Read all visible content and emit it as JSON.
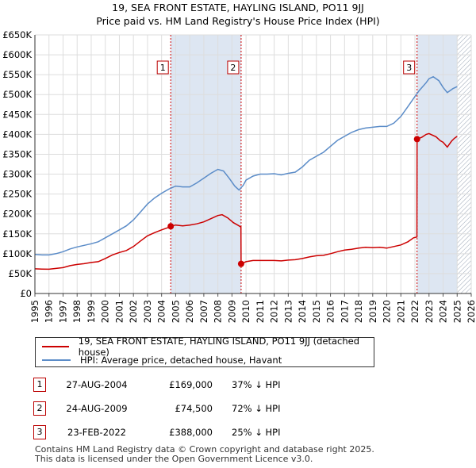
{
  "chart_data": {
    "type": "line",
    "title": "19, SEA FRONT ESTATE, HAYLING ISLAND, PO11 9JJ",
    "subtitle": "Price paid vs. HM Land Registry's House Price Index (HPI)",
    "x_ticks": [
      "1995",
      "1996",
      "1997",
      "1998",
      "1999",
      "2000",
      "2001",
      "2002",
      "2003",
      "2004",
      "2005",
      "2006",
      "2007",
      "2008",
      "2009",
      "2010",
      "2011",
      "2012",
      "2013",
      "2014",
      "2015",
      "2016",
      "2017",
      "2018",
      "2019",
      "2020",
      "2021",
      "2022",
      "2023",
      "2024",
      "2025",
      "2026"
    ],
    "y_ticks": [
      "£0",
      "£50K",
      "£100K",
      "£150K",
      "£200K",
      "£250K",
      "£300K",
      "£350K",
      "£400K",
      "£450K",
      "£500K",
      "£550K",
      "£600K",
      "£650K"
    ],
    "xlim": [
      1995,
      2026
    ],
    "ylim": [
      0,
      650000
    ],
    "future_start": 2025.0,
    "colors": {
      "property": "#cc0000",
      "hpi": "#5b8cc8",
      "marker_line": "#cc0000",
      "highlight": "#dde6f2",
      "grid": "#dddddd"
    },
    "series": [
      {
        "name": "19, SEA FRONT ESTATE, HAYLING ISLAND, PO11 9JJ (detached house)",
        "color": "#cc0000",
        "points": [
          [
            1995.0,
            62000
          ],
          [
            1995.5,
            61500
          ],
          [
            1996.0,
            61000
          ],
          [
            1996.5,
            63000
          ],
          [
            1997.0,
            65000
          ],
          [
            1997.5,
            70000
          ],
          [
            1998.0,
            73000
          ],
          [
            1998.5,
            75000
          ],
          [
            1999.0,
            78000
          ],
          [
            1999.5,
            80000
          ],
          [
            2000.0,
            88000
          ],
          [
            2000.5,
            97000
          ],
          [
            2001.0,
            103000
          ],
          [
            2001.5,
            108000
          ],
          [
            2002.0,
            118000
          ],
          [
            2002.5,
            132000
          ],
          [
            2003.0,
            145000
          ],
          [
            2003.5,
            153000
          ],
          [
            2004.0,
            160000
          ],
          [
            2004.5,
            166000
          ],
          [
            2004.65,
            169000
          ],
          [
            2005.0,
            172000
          ],
          [
            2005.5,
            170000
          ],
          [
            2006.0,
            172000
          ],
          [
            2006.5,
            175000
          ],
          [
            2007.0,
            180000
          ],
          [
            2007.5,
            188000
          ],
          [
            2008.0,
            196000
          ],
          [
            2008.3,
            198000
          ],
          [
            2008.7,
            190000
          ],
          [
            2009.1,
            178000
          ],
          [
            2009.4,
            172000
          ],
          [
            2009.64,
            167000
          ],
          [
            2009.65,
            74500
          ],
          [
            2010.0,
            80000
          ],
          [
            2010.5,
            83000
          ],
          [
            2011.0,
            83000
          ],
          [
            2011.5,
            83000
          ],
          [
            2012.0,
            83000
          ],
          [
            2012.5,
            82000
          ],
          [
            2013.0,
            84000
          ],
          [
            2013.5,
            85000
          ],
          [
            2014.0,
            88000
          ],
          [
            2014.5,
            92000
          ],
          [
            2015.0,
            95000
          ],
          [
            2015.5,
            96000
          ],
          [
            2016.0,
            100000
          ],
          [
            2016.5,
            105000
          ],
          [
            2017.0,
            109000
          ],
          [
            2017.5,
            111000
          ],
          [
            2018.0,
            114000
          ],
          [
            2018.5,
            116000
          ],
          [
            2019.0,
            115000
          ],
          [
            2019.5,
            116000
          ],
          [
            2020.0,
            114000
          ],
          [
            2020.5,
            118000
          ],
          [
            2021.0,
            122000
          ],
          [
            2021.5,
            130000
          ],
          [
            2021.9,
            140000
          ],
          [
            2022.14,
            142000
          ],
          [
            2022.15,
            388000
          ],
          [
            2022.5,
            393000
          ],
          [
            2022.8,
            400000
          ],
          [
            2023.0,
            402000
          ],
          [
            2023.5,
            394000
          ],
          [
            2023.8,
            384000
          ],
          [
            2024.0,
            380000
          ],
          [
            2024.3,
            368000
          ],
          [
            2024.6,
            383000
          ],
          [
            2024.8,
            390000
          ],
          [
            2025.0,
            395000
          ]
        ]
      },
      {
        "name": "HPI: Average price, detached house, Havant",
        "color": "#5b8cc8",
        "points": [
          [
            1995.0,
            98000
          ],
          [
            1995.5,
            97000
          ],
          [
            1996.0,
            97000
          ],
          [
            1996.5,
            100000
          ],
          [
            1997.0,
            105000
          ],
          [
            1997.5,
            112000
          ],
          [
            1998.0,
            117000
          ],
          [
            1998.5,
            121000
          ],
          [
            1999.0,
            125000
          ],
          [
            1999.5,
            130000
          ],
          [
            2000.0,
            140000
          ],
          [
            2000.5,
            150000
          ],
          [
            2001.0,
            160000
          ],
          [
            2001.5,
            170000
          ],
          [
            2002.0,
            185000
          ],
          [
            2002.5,
            205000
          ],
          [
            2003.0,
            225000
          ],
          [
            2003.5,
            240000
          ],
          [
            2004.0,
            252000
          ],
          [
            2004.5,
            262000
          ],
          [
            2005.0,
            270000
          ],
          [
            2005.5,
            268000
          ],
          [
            2006.0,
            268000
          ],
          [
            2006.5,
            278000
          ],
          [
            2007.0,
            290000
          ],
          [
            2007.5,
            302000
          ],
          [
            2008.0,
            312000
          ],
          [
            2008.4,
            308000
          ],
          [
            2008.8,
            290000
          ],
          [
            2009.2,
            270000
          ],
          [
            2009.5,
            260000
          ],
          [
            2009.8,
            272000
          ],
          [
            2010.0,
            285000
          ],
          [
            2010.5,
            295000
          ],
          [
            2011.0,
            300000
          ],
          [
            2011.5,
            300000
          ],
          [
            2012.0,
            301000
          ],
          [
            2012.5,
            298000
          ],
          [
            2013.0,
            302000
          ],
          [
            2013.5,
            305000
          ],
          [
            2014.0,
            318000
          ],
          [
            2014.5,
            335000
          ],
          [
            2015.0,
            345000
          ],
          [
            2015.5,
            355000
          ],
          [
            2016.0,
            370000
          ],
          [
            2016.5,
            385000
          ],
          [
            2017.0,
            395000
          ],
          [
            2017.5,
            405000
          ],
          [
            2018.0,
            412000
          ],
          [
            2018.5,
            416000
          ],
          [
            2019.0,
            418000
          ],
          [
            2019.5,
            420000
          ],
          [
            2020.0,
            420000
          ],
          [
            2020.5,
            428000
          ],
          [
            2021.0,
            445000
          ],
          [
            2021.5,
            470000
          ],
          [
            2022.0,
            495000
          ],
          [
            2022.3,
            510000
          ],
          [
            2022.8,
            530000
          ],
          [
            2023.0,
            540000
          ],
          [
            2023.3,
            545000
          ],
          [
            2023.7,
            535000
          ],
          [
            2024.0,
            518000
          ],
          [
            2024.3,
            505000
          ],
          [
            2024.7,
            515000
          ],
          [
            2025.0,
            520000
          ]
        ]
      }
    ],
    "sale_markers": [
      {
        "id": "1",
        "x": 2004.65,
        "y": 169000
      },
      {
        "id": "2",
        "x": 2009.65,
        "y": 74500
      },
      {
        "id": "3",
        "x": 2022.15,
        "y": 388000
      }
    ],
    "highlight_spans": [
      [
        2004.65,
        2009.65
      ],
      [
        2022.15,
        2025.0
      ]
    ]
  },
  "legend": {
    "property_label": "19, SEA FRONT ESTATE, HAYLING ISLAND, PO11 9JJ (detached house)",
    "hpi_label": "HPI: Average price, detached house, Havant"
  },
  "sales": [
    {
      "num": "1",
      "date": "27-AUG-2004",
      "price": "£169,000",
      "hpi": "37% ↓ HPI"
    },
    {
      "num": "2",
      "date": "24-AUG-2009",
      "price": "£74,500",
      "hpi": "72% ↓ HPI"
    },
    {
      "num": "3",
      "date": "23-FEB-2022",
      "price": "£388,000",
      "hpi": "25% ↓ HPI"
    }
  ],
  "footer": {
    "line1": "Contains HM Land Registry data © Crown copyright and database right 2025.",
    "line2": "This data is licensed under the Open Government Licence v3.0."
  }
}
